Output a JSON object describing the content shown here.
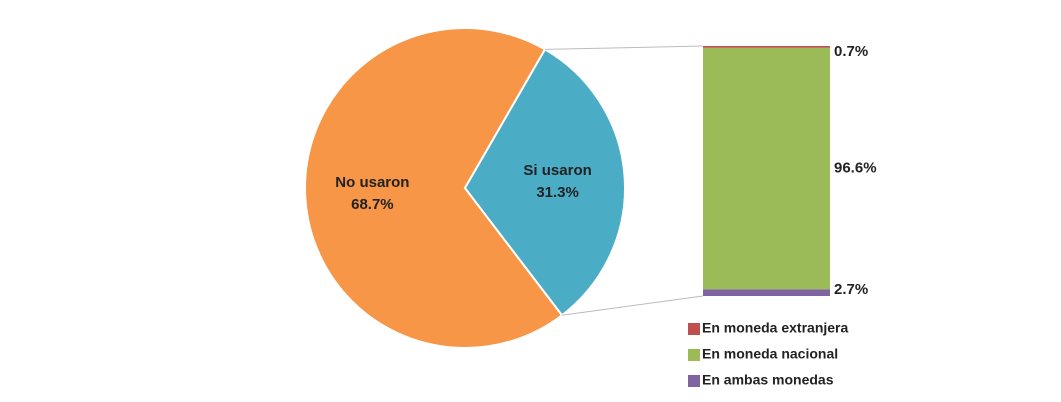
{
  "chart_data": [
    {
      "type": "pie",
      "categories": [
        "No usaron",
        "Si usaron"
      ],
      "values": [
        68.7,
        31.3
      ],
      "value_labels": [
        "68.7%",
        "31.3%"
      ],
      "colors": [
        "#f79646",
        "#4bacc6"
      ]
    },
    {
      "type": "bar",
      "stacked": true,
      "legend": "bottom",
      "series": [
        {
          "name": "En moneda extranjera",
          "color": "#c0504d",
          "values": [
            0.7
          ],
          "value_labels": [
            "0.7%"
          ]
        },
        {
          "name": "En moneda nacional",
          "color": "#9bbb59",
          "values": [
            96.6
          ],
          "value_labels": [
            "96.6%"
          ]
        },
        {
          "name": "En ambas monedas",
          "color": "#8064a2",
          "values": [
            2.7
          ],
          "value_labels": [
            "2.7%"
          ]
        }
      ]
    }
  ]
}
